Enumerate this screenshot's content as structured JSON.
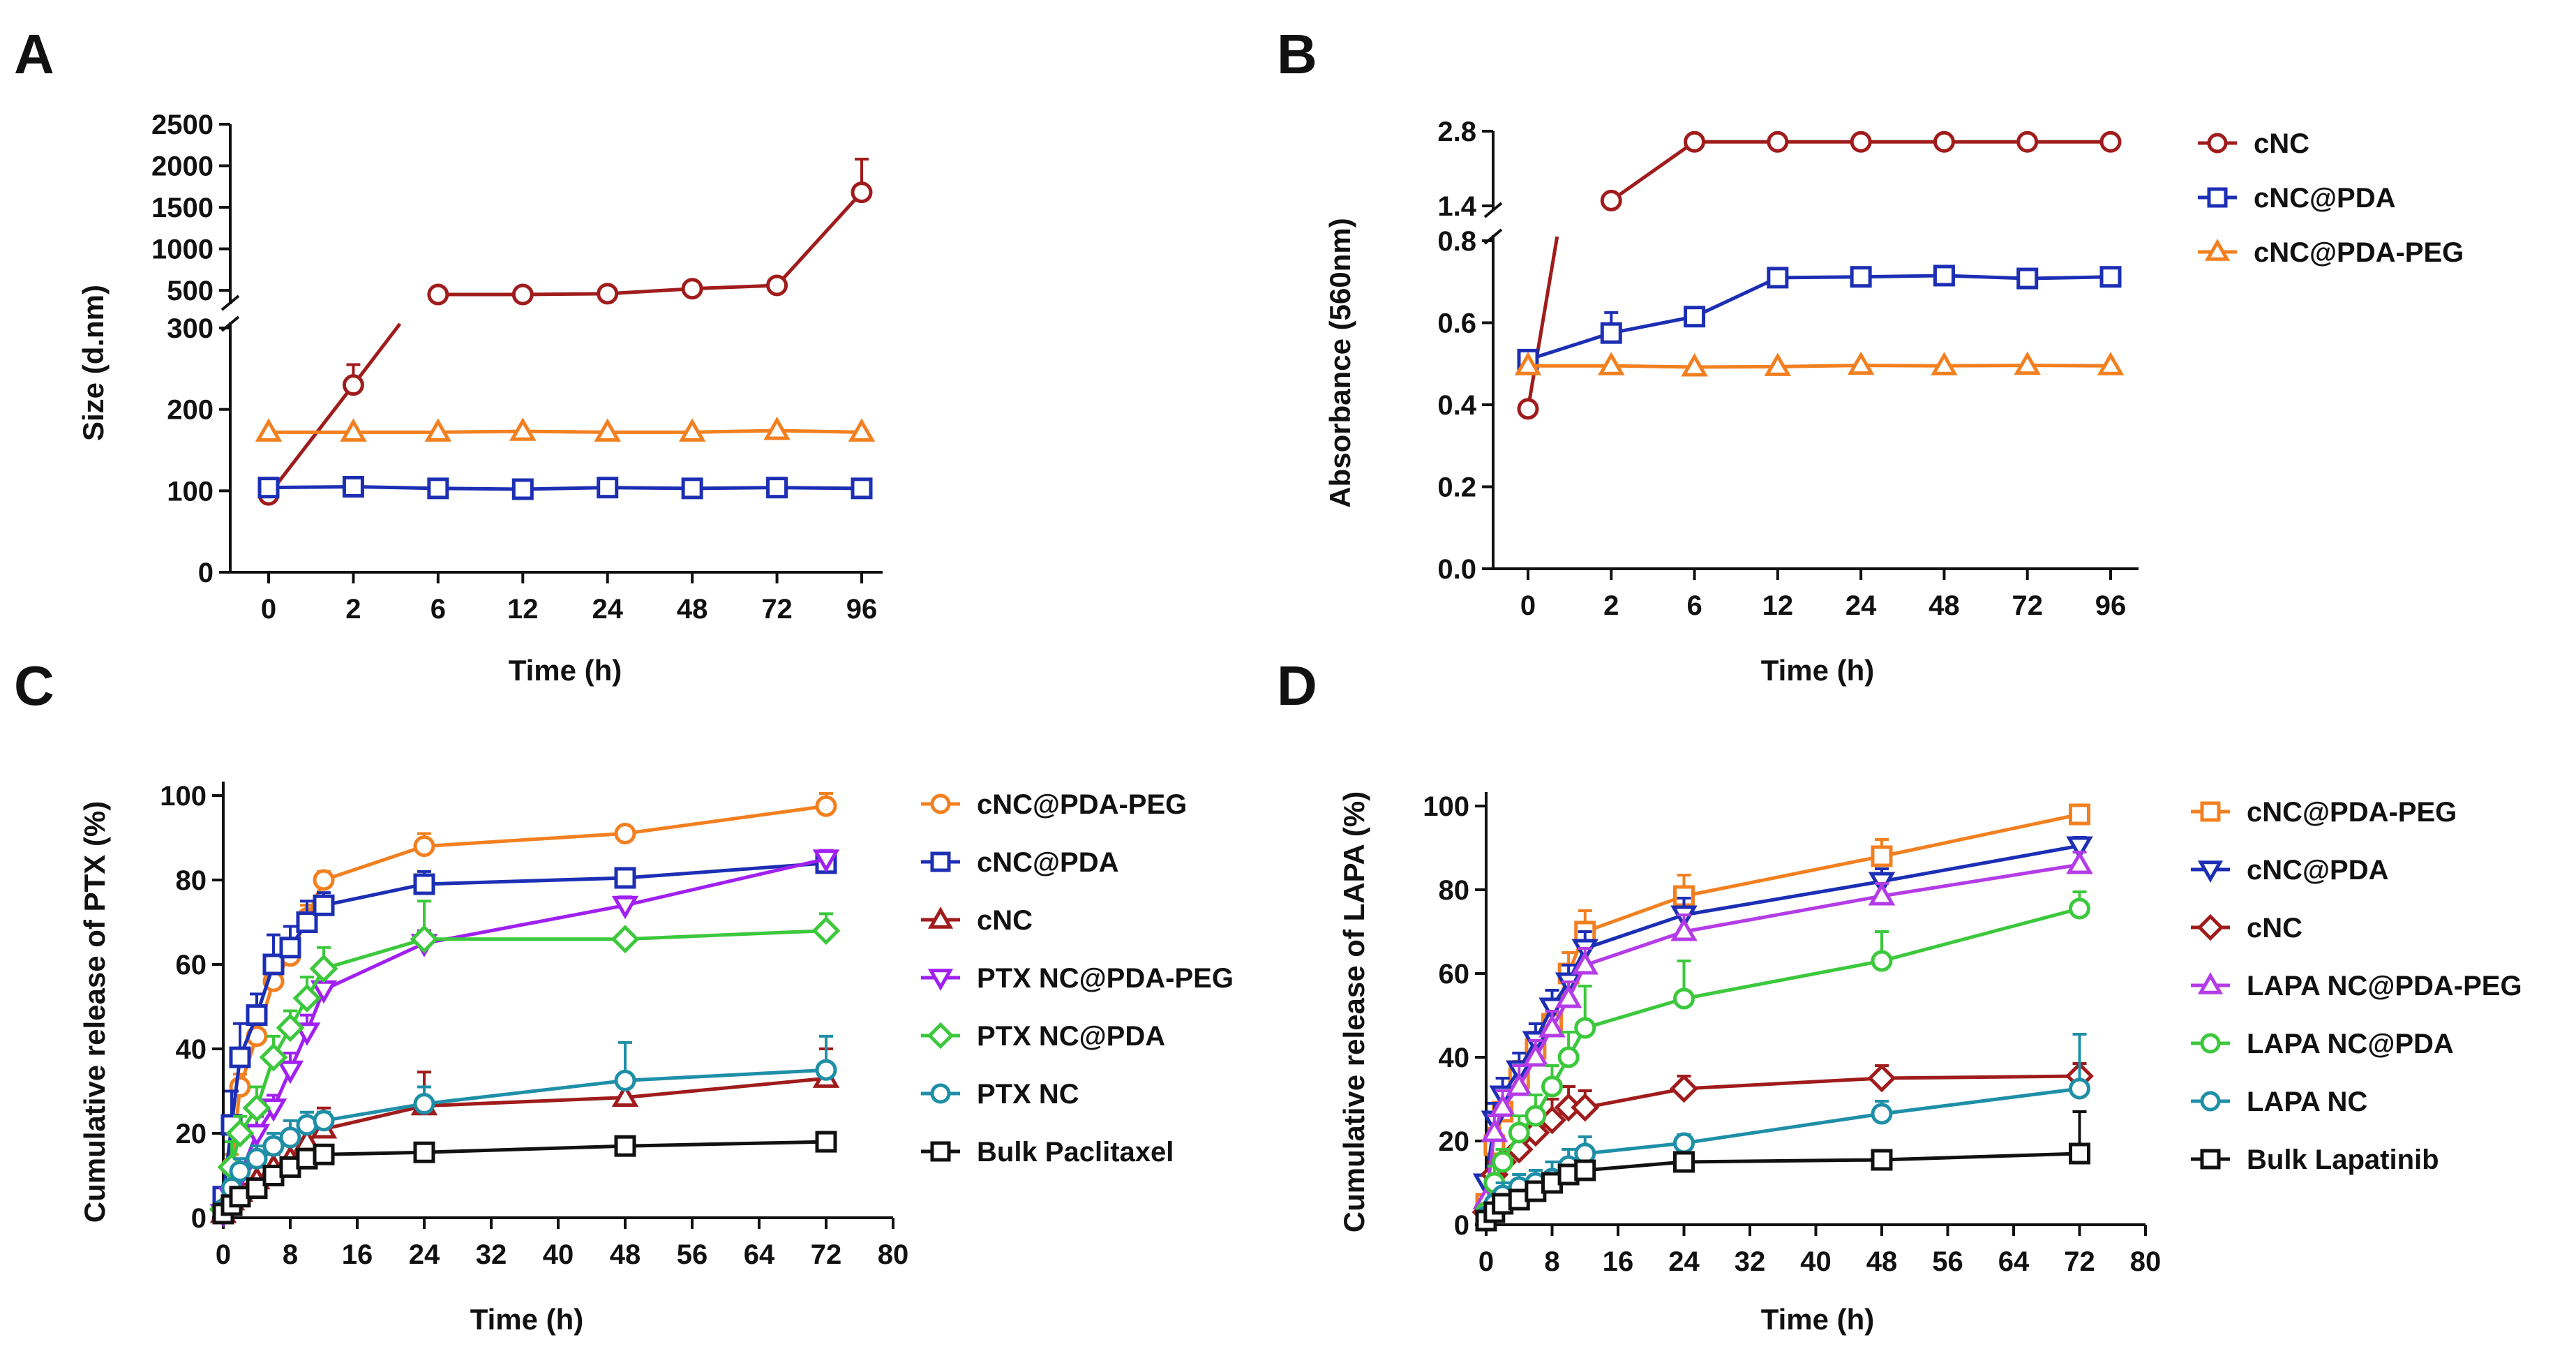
{
  "panels": [
    {
      "id": "A",
      "label": "A"
    },
    {
      "id": "B",
      "label": "B"
    },
    {
      "id": "C",
      "label": "C"
    },
    {
      "id": "D",
      "label": "D"
    }
  ],
  "chart_data": [
    {
      "panel": "A",
      "type": "line",
      "title": "",
      "xlabel": "Time (h)",
      "ylabel": "Size (d.nm)",
      "x_categories": [
        "0",
        "2",
        "6",
        "12",
        "24",
        "48",
        "72",
        "96"
      ],
      "y_axis_broken": true,
      "y_lower_range": [
        0,
        300
      ],
      "y_lower_ticks": [
        0,
        100,
        200,
        300
      ],
      "y_upper_range": [
        400,
        2500
      ],
      "y_upper_ticks": [
        500,
        1000,
        1500,
        2000,
        2500
      ],
      "series": [
        {
          "name": "cNC",
          "color": "#A01C1C",
          "marker": "circle",
          "values": [
            95,
            230,
            450,
            450,
            460,
            520,
            560,
            1680
          ],
          "errors": [
            0,
            25,
            0,
            0,
            0,
            0,
            0,
            400
          ]
        },
        {
          "name": "cNC@PDA",
          "color": "#1C2FB4",
          "marker": "square",
          "values": [
            104,
            105,
            103,
            102,
            104,
            103,
            104,
            103
          ],
          "errors": [
            0,
            0,
            0,
            0,
            0,
            0,
            0,
            0
          ]
        },
        {
          "name": "cNC@PDA-PEG",
          "color": "#F28020",
          "marker": "triangle-up",
          "values": [
            172,
            172,
            172,
            173,
            172,
            172,
            174,
            172
          ],
          "errors": [
            0,
            0,
            0,
            0,
            0,
            0,
            0,
            0
          ]
        }
      ]
    },
    {
      "panel": "B",
      "type": "line",
      "title": "",
      "xlabel": "Time (h)",
      "ylabel": "Absorbance (560nm)",
      "x_categories": [
        "0",
        "2",
        "6",
        "12",
        "24",
        "48",
        "72",
        "96"
      ],
      "y_axis_broken": true,
      "y_lower_range": [
        0,
        0.8
      ],
      "y_lower_ticks": [
        "0.0",
        "0.2",
        "0.4",
        "0.6",
        "0.8"
      ],
      "y_upper_range": [
        1.4,
        2.8
      ],
      "y_upper_ticks": [
        "1.4",
        "2.8"
      ],
      "legend": [
        "cNC",
        "cNC@PDA",
        "cNC@PDA-PEG"
      ],
      "series": [
        {
          "name": "cNC",
          "color": "#A01C1C",
          "marker": "circle",
          "values": [
            0.39,
            1.5,
            2.6,
            2.6,
            2.6,
            2.6,
            2.6,
            2.6
          ],
          "errors": [
            0,
            0,
            0,
            0,
            0,
            0,
            0,
            0
          ]
        },
        {
          "name": "cNC@PDA",
          "color": "#1C2FB4",
          "marker": "square",
          "values": [
            0.51,
            0.575,
            0.615,
            0.71,
            0.712,
            0.715,
            0.708,
            0.712
          ],
          "errors": [
            0,
            0.05,
            0,
            0,
            0,
            0,
            0,
            0
          ]
        },
        {
          "name": "cNC@PDA-PEG",
          "color": "#F28020",
          "marker": "triangle-up",
          "values": [
            0.495,
            0.495,
            0.492,
            0.493,
            0.496,
            0.495,
            0.496,
            0.495
          ],
          "errors": [
            0,
            0,
            0,
            0,
            0,
            0,
            0,
            0
          ]
        }
      ]
    },
    {
      "panel": "C",
      "type": "line",
      "title": "",
      "xlabel": "Time (h)",
      "ylabel": "Cumulative release of PTX (%)",
      "xlim": [
        0,
        80
      ],
      "x_ticks": [
        0,
        8,
        16,
        24,
        32,
        40,
        48,
        56,
        64,
        72,
        80
      ],
      "ylim": [
        0,
        100
      ],
      "y_ticks": [
        0,
        20,
        40,
        60,
        80,
        100
      ],
      "x": [
        0,
        1,
        2,
        4,
        6,
        8,
        10,
        12,
        24,
        48,
        72
      ],
      "series": [
        {
          "name": "cNC@PDA-PEG",
          "color": "#F28020",
          "marker": "circle",
          "values": [
            2,
            12,
            31,
            43,
            56,
            62,
            71,
            80,
            88,
            91,
            97.5
          ],
          "errors": [
            0,
            3,
            3,
            3,
            3,
            3,
            3,
            2,
            3,
            1,
            3
          ]
        },
        {
          "name": "cNC@PDA",
          "color": "#1C2FB4",
          "marker": "square",
          "values": [
            5,
            22,
            38,
            48,
            60,
            64,
            70,
            74,
            79,
            80.5,
            84
          ],
          "errors": [
            0,
            8,
            8,
            5,
            7,
            5,
            5,
            3,
            3,
            2,
            2
          ]
        },
        {
          "name": "cNC",
          "color": "#A01C1C",
          "marker": "triangle-up",
          "values": [
            1,
            4,
            6,
            9,
            12,
            14,
            18,
            21,
            26.5,
            28.5,
            33
          ],
          "errors": [
            0,
            2,
            2,
            3,
            3,
            4,
            4,
            5,
            8,
            3,
            7
          ]
        },
        {
          "name": "PTX NC@PDA-PEG",
          "color": "#A020F0",
          "marker": "triangle-down",
          "values": [
            1,
            5,
            10,
            20,
            26,
            35,
            44,
            54,
            65,
            74,
            85
          ],
          "errors": [
            0,
            2,
            3,
            4,
            3,
            4,
            4,
            4,
            3,
            2,
            2
          ]
        },
        {
          "name": "PTX NC@PDA",
          "color": "#3CC83C",
          "marker": "diamond",
          "values": [
            2,
            12,
            20,
            26,
            38,
            45,
            52,
            59,
            66,
            66,
            68
          ],
          "errors": [
            0,
            6,
            4,
            5,
            5,
            4,
            5,
            5,
            9,
            1,
            4
          ]
        },
        {
          "name": "PTX NC",
          "color": "#1F8FA8",
          "marker": "circle",
          "values": [
            2,
            7,
            11,
            14,
            17,
            19,
            22,
            23,
            27,
            32.5,
            35
          ],
          "errors": [
            0,
            2,
            3,
            3,
            3,
            4,
            3,
            2,
            4,
            9,
            8
          ]
        },
        {
          "name": "Bulk Paclitaxel",
          "color": "#111111",
          "marker": "square",
          "values": [
            1,
            3,
            5,
            7,
            10,
            12,
            14,
            15,
            15.5,
            17,
            18
          ],
          "errors": [
            0,
            1,
            1,
            1,
            1,
            1,
            1,
            1,
            1,
            1,
            1
          ]
        }
      ]
    },
    {
      "panel": "D",
      "type": "line",
      "title": "",
      "xlabel": "Time (h)",
      "ylabel": "Cumulative release of LAPA (%)",
      "xlim": [
        0,
        80
      ],
      "x_ticks": [
        0,
        8,
        16,
        24,
        32,
        40,
        48,
        56,
        64,
        72,
        80
      ],
      "ylim": [
        0,
        100
      ],
      "y_ticks": [
        0,
        20,
        40,
        60,
        80,
        100
      ],
      "x": [
        0,
        1,
        2,
        4,
        6,
        8,
        10,
        12,
        24,
        48,
        72
      ],
      "series": [
        {
          "name": "cNC@PDA-PEG",
          "color": "#F28020",
          "marker": "square",
          "values": [
            5,
            19,
            27,
            35,
            42,
            48,
            60,
            70,
            78.5,
            88,
            98
          ],
          "errors": [
            0,
            4,
            4,
            4,
            4,
            5,
            5,
            5,
            5,
            4,
            2
          ]
        },
        {
          "name": "cNC@PDA",
          "color": "#1C2FB4",
          "marker": "triangle-down",
          "values": [
            10,
            25,
            31,
            37,
            44,
            52,
            58,
            66,
            74,
            82,
            90.5
          ],
          "errors": [
            0,
            4,
            4,
            4,
            4,
            4,
            4,
            4,
            4,
            3,
            2
          ]
        },
        {
          "name": "cNC",
          "color": "#A01C1C",
          "marker": "diamond",
          "values": [
            3,
            12,
            15,
            18,
            22,
            25,
            28,
            28,
            32.5,
            35,
            35.5
          ],
          "errors": [
            0,
            3,
            3,
            4,
            4,
            5,
            5,
            4,
            3,
            3,
            3
          ]
        },
        {
          "name": "LAPA NC@PDA-PEG",
          "color": "#B43CE6",
          "marker": "triangle-up",
          "values": [
            6,
            22,
            28,
            33,
            40,
            47,
            54,
            62,
            70,
            78.5,
            86
          ],
          "errors": [
            0,
            4,
            4,
            5,
            4,
            4,
            4,
            4,
            4,
            3,
            3
          ]
        },
        {
          "name": "LAPA NC@PDA",
          "color": "#3CC83C",
          "marker": "circle",
          "values": [
            3,
            10,
            15,
            22,
            26,
            33,
            40,
            47,
            54,
            63,
            75.5
          ],
          "errors": [
            0,
            4,
            3,
            4,
            5,
            5,
            6,
            10,
            9,
            7,
            4
          ]
        },
        {
          "name": "LAPA NC",
          "color": "#1F8FA8",
          "marker": "circle",
          "values": [
            2,
            5,
            7,
            9,
            10,
            11,
            14,
            17,
            19.5,
            26.5,
            32.5
          ],
          "errors": [
            0,
            2,
            3,
            3,
            3,
            4,
            4,
            4,
            2,
            3,
            13
          ]
        },
        {
          "name": "Bulk Lapatinib",
          "color": "#111111",
          "marker": "square",
          "values": [
            1,
            3,
            5,
            6,
            8,
            10,
            12,
            13,
            15,
            15.5,
            17
          ],
          "errors": [
            0,
            1,
            1,
            1,
            1,
            1,
            1,
            2,
            1,
            2,
            10
          ]
        }
      ]
    }
  ]
}
